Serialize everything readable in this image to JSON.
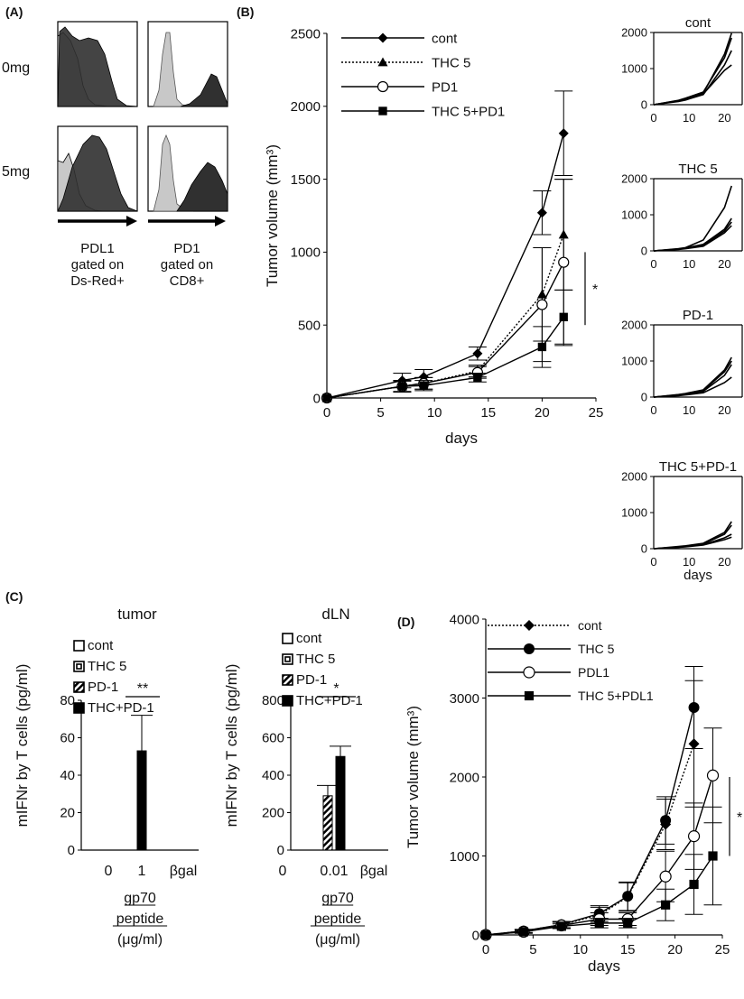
{
  "panel_labels": {
    "a": "(A)",
    "b": "(B)",
    "c": "(C)",
    "d": "(D)"
  },
  "colors": {
    "line": "#000000",
    "hist_gray": "#c8c8c8",
    "hist_dark": "#303030",
    "stripe": "#000000"
  },
  "panel_a": {
    "row_labels": [
      "0mg",
      "5mg"
    ],
    "column_labels": [
      {
        "lines": [
          "PDL1",
          "gated on",
          "Ds-Red+"
        ]
      },
      {
        "lines": [
          "PD1",
          "gated on",
          "CD8+"
        ]
      }
    ]
  },
  "chart_data": [
    {
      "id": "B-main",
      "type": "line",
      "ylabel": "Tumor volume (mm³)",
      "xlabel": "days",
      "xlim": [
        0,
        25
      ],
      "ylim": [
        0,
        2500
      ],
      "xticks": [
        0,
        5,
        10,
        15,
        20,
        25
      ],
      "yticks": [
        0,
        500,
        1000,
        1500,
        2000,
        2500
      ],
      "legend": "top-left",
      "x": [
        0,
        7,
        9,
        14,
        20,
        22
      ],
      "series": [
        {
          "name": "cont",
          "marker": "diamond",
          "dash": "solid",
          "values": [
            0,
            120,
            145,
            305,
            1270,
            1815
          ],
          "errors": [
            0,
            50,
            50,
            45,
            150,
            290
          ]
        },
        {
          "name": "THC 5",
          "marker": "triangle",
          "dash": "dotted",
          "values": [
            0,
            80,
            100,
            185,
            710,
            1120
          ],
          "errors": [
            0,
            40,
            40,
            40,
            320,
            380
          ]
        },
        {
          "name": "PD1",
          "marker": "circle-open",
          "dash": "solid",
          "values": [
            0,
            80,
            100,
            175,
            640,
            930
          ],
          "errors": [
            0,
            40,
            40,
            40,
            390,
            570
          ]
        },
        {
          "name": "THC 5+PD1",
          "marker": "square",
          "dash": "solid",
          "values": [
            0,
            80,
            85,
            140,
            350,
            555
          ],
          "errors": [
            0,
            35,
            35,
            30,
            140,
            185
          ]
        }
      ],
      "annotation": "*"
    },
    {
      "id": "B-cont",
      "type": "line",
      "title": "cont",
      "xlim": [
        0,
        25
      ],
      "ylim": [
        0,
        2000
      ],
      "xticks": [
        0,
        10,
        20
      ],
      "yticks": [
        0,
        1000,
        2000
      ],
      "x": [
        0,
        7,
        9,
        14,
        20,
        22
      ],
      "series": [
        {
          "values": [
            0,
            100,
            150,
            320,
            1400,
            1980
          ]
        },
        {
          "values": [
            0,
            120,
            180,
            350,
            1300,
            1850
          ]
        },
        {
          "values": [
            0,
            90,
            130,
            280,
            1100,
            1500
          ]
        },
        {
          "values": [
            0,
            110,
            160,
            300,
            950,
            1100
          ]
        }
      ]
    },
    {
      "id": "B-thc5",
      "type": "line",
      "title": "THC 5",
      "xlim": [
        0,
        25
      ],
      "ylim": [
        0,
        2000
      ],
      "xticks": [
        0,
        10,
        20
      ],
      "yticks": [
        0,
        1000,
        2000
      ],
      "x": [
        0,
        7,
        9,
        14,
        20,
        22
      ],
      "series": [
        {
          "values": [
            0,
            60,
            90,
            300,
            1200,
            1800
          ]
        },
        {
          "values": [
            0,
            50,
            80,
            180,
            600,
            900
          ]
        },
        {
          "values": [
            0,
            50,
            70,
            150,
            550,
            800
          ]
        },
        {
          "values": [
            0,
            40,
            60,
            130,
            500,
            700
          ]
        }
      ]
    },
    {
      "id": "B-pd1",
      "type": "line",
      "title": "PD-1",
      "xlim": [
        0,
        25
      ],
      "ylim": [
        0,
        2000
      ],
      "xticks": [
        0,
        10,
        20
      ],
      "yticks": [
        0,
        1000,
        2000
      ],
      "x": [
        0,
        7,
        9,
        14,
        20,
        22
      ],
      "series": [
        {
          "values": [
            0,
            70,
            100,
            200,
            750,
            1100
          ]
        },
        {
          "values": [
            0,
            60,
            90,
            180,
            700,
            1000
          ]
        },
        {
          "values": [
            0,
            50,
            80,
            160,
            600,
            900
          ]
        },
        {
          "values": [
            0,
            40,
            60,
            120,
            400,
            550
          ]
        }
      ]
    },
    {
      "id": "B-thc5pd1",
      "type": "line",
      "title": "THC 5+PD-1",
      "xlabel": "days",
      "xlim": [
        0,
        25
      ],
      "ylim": [
        0,
        2000
      ],
      "xticks": [
        0,
        10,
        20
      ],
      "yticks": [
        0,
        1000,
        2000
      ],
      "x": [
        0,
        7,
        9,
        14,
        20,
        22
      ],
      "series": [
        {
          "values": [
            0,
            60,
            80,
            150,
            450,
            750
          ]
        },
        {
          "values": [
            0,
            50,
            70,
            130,
            400,
            650
          ]
        },
        {
          "values": [
            0,
            40,
            60,
            110,
            300,
            400
          ]
        },
        {
          "values": [
            0,
            40,
            50,
            100,
            250,
            320
          ]
        }
      ]
    },
    {
      "id": "C-tumor",
      "type": "bar",
      "title": "tumor",
      "ylabel": "mIFNr by T cells (pg/ml)",
      "ylim": [
        0,
        80
      ],
      "yticks": [
        0,
        20,
        40,
        60,
        80
      ],
      "categories": [
        "0",
        "1",
        "βgal"
      ],
      "xlabel_lines": [
        "gp70",
        "peptide",
        "(μg/ml)"
      ],
      "legend_entries": [
        "cont",
        "THC 5",
        "PD-1",
        "THC+PD-1"
      ],
      "series": [
        {
          "name": "THC+PD-1",
          "category_index": 1,
          "value": 53,
          "error": 19,
          "fill": "solid"
        }
      ],
      "annotation": "**"
    },
    {
      "id": "C-dLN",
      "type": "bar",
      "title": "dLN",
      "ylabel": "mIFNr by T cells (pg/ml)",
      "ylim": [
        0,
        800
      ],
      "yticks": [
        0,
        200,
        400,
        600,
        800
      ],
      "categories": [
        "0",
        "0.01",
        "βgal"
      ],
      "xlabel_lines": [
        "gp70",
        "peptide",
        "(μg/ml)"
      ],
      "legend_entries": [
        "cont",
        "THC 5",
        "PD-1",
        "THC+PD-1"
      ],
      "series": [
        {
          "name": "PD-1",
          "category_index": 1,
          "value": 290,
          "error": 55,
          "fill": "striped"
        },
        {
          "name": "THC+PD-1",
          "category_index": 1,
          "value": 500,
          "error": 55,
          "fill": "solid"
        }
      ],
      "annotation": "*"
    },
    {
      "id": "D",
      "type": "line",
      "ylabel": "Tumor volume (mm³)",
      "xlabel": "days",
      "xlim": [
        0,
        25
      ],
      "ylim": [
        0,
        4000
      ],
      "xticks": [
        0,
        5,
        10,
        15,
        20,
        25
      ],
      "yticks": [
        0,
        1000,
        2000,
        3000,
        4000
      ],
      "legend": "top-left",
      "x": [
        0,
        4,
        8,
        12,
        15,
        19,
        22,
        24
      ],
      "series": [
        {
          "name": "cont",
          "marker": "diamond",
          "dash": "dotted",
          "x": [
            0,
            4,
            8,
            12,
            15,
            19,
            22
          ],
          "values": [
            0,
            50,
            130,
            250,
            480,
            1400,
            2420
          ],
          "errors": [
            0,
            20,
            40,
            100,
            180,
            320,
            800
          ]
        },
        {
          "name": "THC 5",
          "marker": "circle",
          "dash": "solid",
          "x": [
            0,
            4,
            8,
            12,
            15,
            19,
            22
          ],
          "values": [
            0,
            50,
            130,
            270,
            490,
            1450,
            2880
          ],
          "errors": [
            0,
            20,
            40,
            100,
            180,
            300,
            520
          ]
        },
        {
          "name": "PDL1",
          "marker": "circle-open",
          "dash": "solid",
          "x": [
            0,
            4,
            8,
            12,
            15,
            19,
            22,
            24
          ],
          "values": [
            0,
            40,
            120,
            200,
            200,
            740,
            1250,
            2020
          ],
          "errors": [
            0,
            20,
            40,
            80,
            80,
            320,
            420,
            600
          ]
        },
        {
          "name": "THC 5+PDL1",
          "marker": "square",
          "dash": "solid",
          "x": [
            0,
            4,
            8,
            12,
            15,
            19,
            22,
            24
          ],
          "values": [
            0,
            40,
            110,
            150,
            150,
            380,
            640,
            1000
          ],
          "errors": [
            0,
            15,
            30,
            60,
            60,
            200,
            380,
            620
          ]
        }
      ],
      "annotation": "*"
    }
  ]
}
